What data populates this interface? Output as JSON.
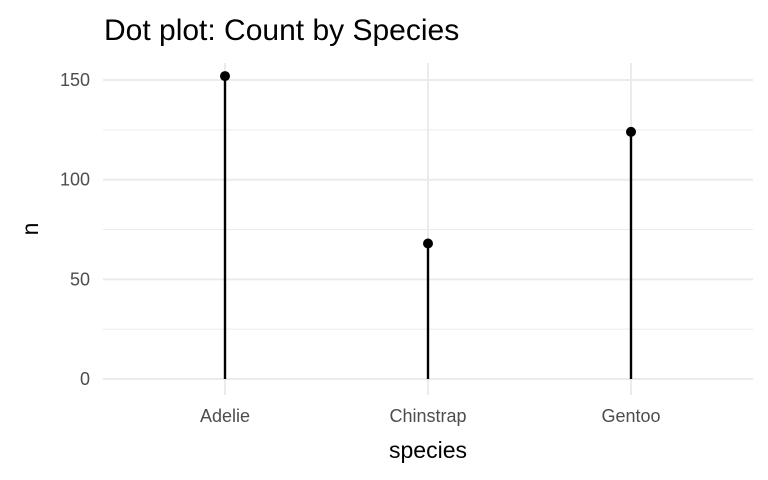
{
  "chart_data": {
    "type": "dot",
    "title": "Dot plot: Count by Species",
    "xlabel": "species",
    "ylabel": "n",
    "categories": [
      "Adelie",
      "Chinstrap",
      "Gentoo"
    ],
    "values": [
      152,
      68,
      124
    ],
    "ylim": [
      0,
      160
    ],
    "yticks": [
      0,
      50,
      100,
      150
    ],
    "ytick_labels": [
      "0",
      "50",
      "100",
      "150"
    ],
    "grid": true,
    "colors": {
      "mark": "#000000",
      "grid": "#ebebeb"
    }
  }
}
